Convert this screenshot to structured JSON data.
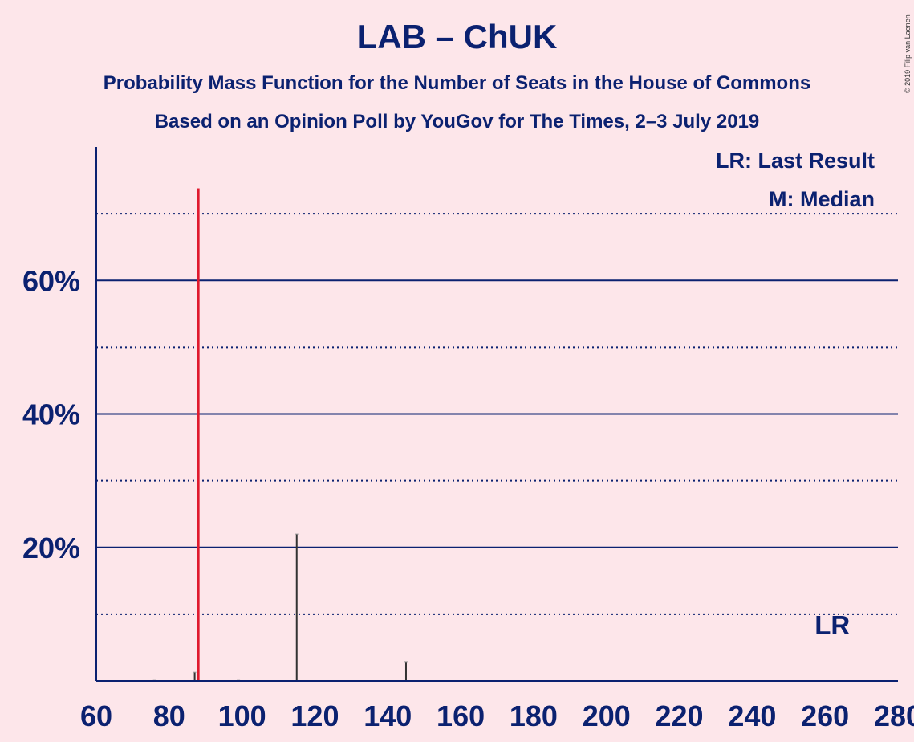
{
  "header": {
    "title": "LAB – ChUK",
    "subtitle_1": "Probability Mass Function for the Number of Seats in the House of Commons",
    "subtitle_2": "Based on an Opinion Poll by YouGov for The Times, 2–3 July 2019",
    "copyright": "© 2019 Filip van Laenen"
  },
  "legend": {
    "last_result": "LR: Last Result",
    "median": "M: Median"
  },
  "markers": {
    "last_result_label": "LR",
    "last_result_x": 262
  },
  "colors": {
    "background": "#fde6ea",
    "text": "#0b2170",
    "bar": "#333333",
    "median_bar": "#e0192d"
  },
  "chart_data": {
    "type": "bar",
    "xlabel": "",
    "ylabel": "",
    "xlim": [
      60,
      280
    ],
    "ylim": [
      0,
      80
    ],
    "xticks": [
      60,
      80,
      100,
      120,
      140,
      160,
      180,
      200,
      220,
      240,
      260,
      280
    ],
    "yticks_major": [
      20,
      40,
      60
    ],
    "yticks_minor": [
      10,
      30,
      50,
      70
    ],
    "ytick_labels": [
      "20%",
      "40%",
      "60%"
    ],
    "median_x": 88,
    "points": [
      {
        "x": 76,
        "y": 0.1
      },
      {
        "x": 87,
        "y": 1.3
      },
      {
        "x": 88,
        "y": 73.8
      },
      {
        "x": 99,
        "y": 0.1
      },
      {
        "x": 115,
        "y": 22.0
      },
      {
        "x": 145,
        "y": 2.9
      }
    ]
  }
}
